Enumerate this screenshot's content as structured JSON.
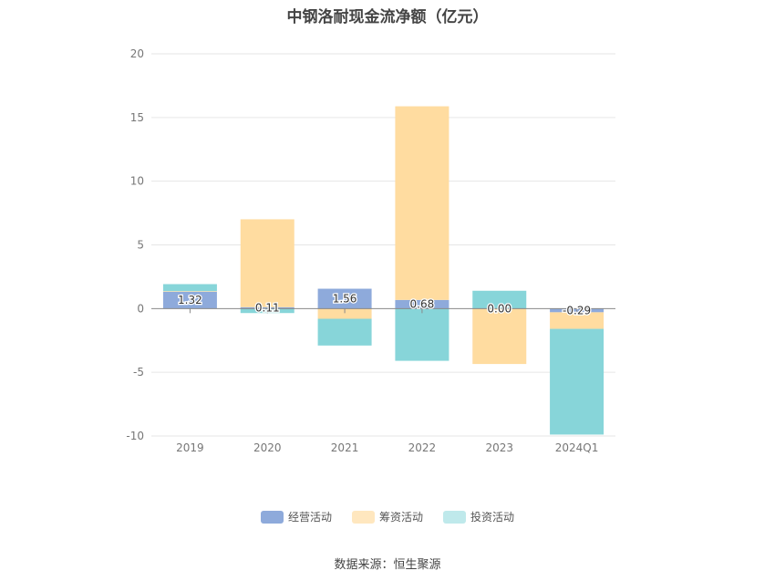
{
  "chart_data": {
    "type": "bar",
    "stacked": true,
    "title": "中钢洛耐现金流净额（亿元）",
    "categories": [
      "2019",
      "2020",
      "2021",
      "2022",
      "2023",
      "2024Q1"
    ],
    "ylim": [
      -10,
      20
    ],
    "yticks": [
      -10,
      -5,
      0,
      5,
      10,
      15,
      20
    ],
    "grid": true,
    "legend_position": "bottom",
    "series": [
      {
        "name": "经营活动",
        "color": "#8eaadb",
        "values": [
          1.32,
          0.11,
          1.56,
          0.68,
          0.0,
          -0.29
        ]
      },
      {
        "name": "筹资活动",
        "color": "#ffdca0",
        "values": [
          0.05,
          6.9,
          -0.8,
          15.2,
          -4.35,
          -1.3
        ]
      },
      {
        "name": "投资活动",
        "color": "#87d5d9",
        "values": [
          0.55,
          -0.35,
          -2.1,
          -4.1,
          1.4,
          -8.3
        ]
      }
    ],
    "data_labels": [
      "1.32",
      "0.11",
      "1.56",
      "0.68",
      "0.00",
      "-0.29"
    ]
  },
  "source": "数据来源：恒生聚源"
}
